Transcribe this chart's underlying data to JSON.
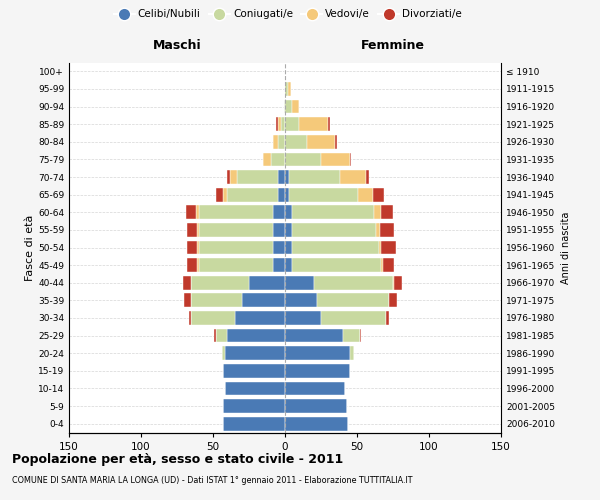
{
  "age_groups": [
    "0-4",
    "5-9",
    "10-14",
    "15-19",
    "20-24",
    "25-29",
    "30-34",
    "35-39",
    "40-44",
    "45-49",
    "50-54",
    "55-59",
    "60-64",
    "65-69",
    "70-74",
    "75-79",
    "80-84",
    "85-89",
    "90-94",
    "95-99",
    "100+"
  ],
  "birth_years": [
    "2006-2010",
    "2001-2005",
    "1996-2000",
    "1991-1995",
    "1986-1990",
    "1981-1985",
    "1976-1980",
    "1971-1975",
    "1966-1970",
    "1961-1965",
    "1956-1960",
    "1951-1955",
    "1946-1950",
    "1941-1945",
    "1936-1940",
    "1931-1935",
    "1926-1930",
    "1921-1925",
    "1916-1920",
    "1911-1915",
    "≤ 1910"
  ],
  "maschi": {
    "celibe": [
      43,
      43,
      42,
      43,
      42,
      40,
      35,
      30,
      25,
      8,
      8,
      8,
      8,
      5,
      5,
      0,
      0,
      0,
      0,
      0,
      0
    ],
    "coniugato": [
      0,
      0,
      0,
      0,
      2,
      8,
      30,
      35,
      40,
      52,
      52,
      52,
      52,
      35,
      28,
      10,
      5,
      3,
      1,
      0,
      0
    ],
    "vedovo": [
      0,
      0,
      0,
      0,
      0,
      0,
      0,
      0,
      0,
      1,
      1,
      1,
      2,
      3,
      5,
      5,
      3,
      2,
      0,
      0,
      0
    ],
    "divorziato": [
      0,
      0,
      0,
      0,
      0,
      1,
      2,
      5,
      6,
      7,
      7,
      7,
      7,
      5,
      2,
      0,
      0,
      1,
      0,
      0,
      0
    ]
  },
  "femmine": {
    "nubile": [
      44,
      43,
      42,
      45,
      45,
      40,
      25,
      22,
      20,
      5,
      5,
      5,
      5,
      3,
      3,
      0,
      0,
      0,
      0,
      0,
      0
    ],
    "coniugata": [
      0,
      0,
      0,
      0,
      3,
      12,
      45,
      50,
      55,
      62,
      60,
      58,
      57,
      48,
      35,
      25,
      15,
      10,
      5,
      2,
      0
    ],
    "vedova": [
      0,
      0,
      0,
      0,
      0,
      0,
      0,
      0,
      1,
      1,
      2,
      3,
      5,
      10,
      18,
      20,
      20,
      20,
      5,
      2,
      0
    ],
    "divorziata": [
      0,
      0,
      0,
      0,
      0,
      1,
      2,
      6,
      5,
      8,
      10,
      10,
      8,
      8,
      2,
      1,
      1,
      1,
      0,
      0,
      0
    ]
  },
  "colors": {
    "celibe": "#4a7ab5",
    "coniugato": "#c8d9a0",
    "vedovo": "#f5c97a",
    "divorziato": "#c0392b"
  },
  "xlim": 150,
  "title": "Popolazione per età, sesso e stato civile - 2011",
  "subtitle": "COMUNE DI SANTA MARIA LA LONGA (UD) - Dati ISTAT 1° gennaio 2011 - Elaborazione TUTTITALIA.IT",
  "ylabel_left": "Fasce di età",
  "ylabel_right": "Anni di nascita",
  "xlabel_maschi": "Maschi",
  "xlabel_femmine": "Femmine",
  "bg_color": "#f5f5f5",
  "plot_bg": "#ffffff",
  "legend_labels": [
    "Celibi/Nubili",
    "Coniugati/e",
    "Vedovi/e",
    "Divorziati/e"
  ]
}
